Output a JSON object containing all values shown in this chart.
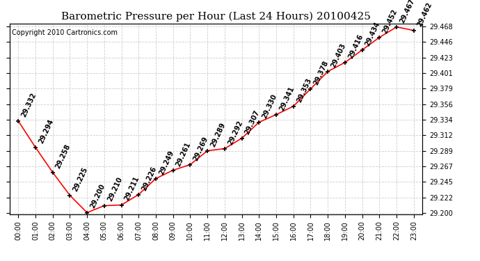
{
  "title": "Barometric Pressure per Hour (Last 24 Hours) 20100425",
  "copyright": "Copyright 2010 Cartronics.com",
  "hours": [
    "00:00",
    "01:00",
    "02:00",
    "03:00",
    "04:00",
    "05:00",
    "06:00",
    "07:00",
    "08:00",
    "09:00",
    "10:00",
    "11:00",
    "12:00",
    "13:00",
    "14:00",
    "15:00",
    "16:00",
    "17:00",
    "18:00",
    "19:00",
    "20:00",
    "21:00",
    "22:00",
    "23:00"
  ],
  "values": [
    29.332,
    29.294,
    29.258,
    29.225,
    29.2,
    29.21,
    29.211,
    29.226,
    29.249,
    29.261,
    29.269,
    29.289,
    29.292,
    29.307,
    29.33,
    29.341,
    29.353,
    29.378,
    29.403,
    29.416,
    29.434,
    29.452,
    29.467,
    29.462
  ],
  "ylim_min": 29.198,
  "ylim_max": 29.472,
  "yticks": [
    29.2,
    29.222,
    29.245,
    29.267,
    29.289,
    29.312,
    29.334,
    29.356,
    29.379,
    29.401,
    29.423,
    29.446,
    29.468
  ],
  "line_color": "red",
  "marker_color": "black",
  "grid_color": "#cccccc",
  "bg_color": "white",
  "plot_bg": "white",
  "title_fontsize": 11,
  "label_fontsize": 7,
  "annotation_fontsize": 7,
  "copyright_fontsize": 7
}
